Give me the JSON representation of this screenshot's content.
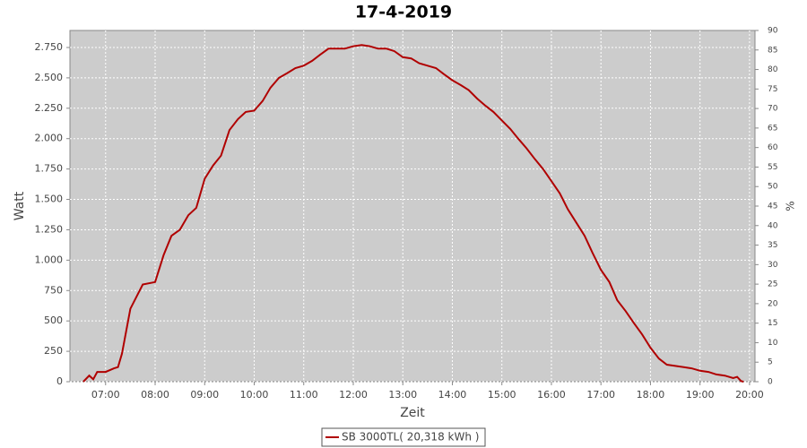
{
  "chart_data": {
    "type": "line",
    "title": "17-4-2019",
    "x_label": "Zeit",
    "y_label": "Watt",
    "y2_label": "%",
    "x": [
      6.55,
      6.67,
      6.75,
      6.83,
      7.0,
      7.17,
      7.25,
      7.33,
      7.5,
      7.75,
      8.0,
      8.17,
      8.33,
      8.5,
      8.67,
      8.83,
      9.0,
      9.17,
      9.33,
      9.5,
      9.67,
      9.83,
      10.0,
      10.17,
      10.33,
      10.5,
      10.67,
      10.83,
      11.0,
      11.17,
      11.33,
      11.5,
      11.67,
      11.83,
      12.0,
      12.17,
      12.33,
      12.5,
      12.67,
      12.83,
      13.0,
      13.17,
      13.33,
      13.5,
      13.67,
      13.83,
      14.0,
      14.17,
      14.33,
      14.5,
      14.67,
      14.83,
      15.0,
      15.17,
      15.33,
      15.5,
      15.67,
      15.83,
      16.0,
      16.17,
      16.33,
      16.5,
      16.67,
      16.83,
      17.0,
      17.17,
      17.33,
      17.5,
      17.67,
      17.83,
      18.0,
      18.17,
      18.33,
      18.5,
      18.67,
      18.83,
      19.0,
      19.17,
      19.33,
      19.5,
      19.67,
      19.75,
      19.83,
      19.88
    ],
    "series": [
      {
        "name": "SB 3000TL( 20,318 kWh )",
        "color": "#b00000",
        "values": [
          0,
          50,
          20,
          80,
          80,
          110,
          120,
          230,
          600,
          800,
          820,
          1040,
          1200,
          1250,
          1370,
          1430,
          1670,
          1780,
          1860,
          2070,
          2160,
          2220,
          2230,
          2310,
          2420,
          2500,
          2540,
          2580,
          2600,
          2640,
          2690,
          2740,
          2740,
          2740,
          2760,
          2770,
          2760,
          2740,
          2740,
          2720,
          2670,
          2660,
          2620,
          2600,
          2580,
          2530,
          2480,
          2440,
          2400,
          2330,
          2270,
          2220,
          2150,
          2080,
          2000,
          1920,
          1830,
          1750,
          1650,
          1550,
          1420,
          1310,
          1200,
          1060,
          920,
          820,
          670,
          580,
          480,
          390,
          280,
          190,
          140,
          130,
          120,
          110,
          90,
          80,
          60,
          50,
          30,
          40,
          5,
          0
        ]
      }
    ],
    "xlim": [
      6.28,
      20.11
    ],
    "xticks": [
      {
        "value": 7,
        "label": "07:00"
      },
      {
        "value": 8,
        "label": "08:00"
      },
      {
        "value": 9,
        "label": "09:00"
      },
      {
        "value": 10,
        "label": "10:00"
      },
      {
        "value": 11,
        "label": "11:00"
      },
      {
        "value": 12,
        "label": "12:00"
      },
      {
        "value": 13,
        "label": "13:00"
      },
      {
        "value": 14,
        "label": "14:00"
      },
      {
        "value": 15,
        "label": "15:00"
      },
      {
        "value": 16,
        "label": "16:00"
      },
      {
        "value": 17,
        "label": "17:00"
      },
      {
        "value": 18,
        "label": "18:00"
      },
      {
        "value": 19,
        "label": "19:00"
      },
      {
        "value": 20,
        "label": "20:00"
      }
    ],
    "ylim": [
      0,
      2890
    ],
    "yticks": [
      0,
      250,
      500,
      750,
      {
        "value": 1000,
        "label": "1.000"
      },
      {
        "value": 1250,
        "label": "1.250"
      },
      {
        "value": 1500,
        "label": "1.500"
      },
      {
        "value": 1750,
        "label": "1.750"
      },
      {
        "value": 2000,
        "label": "2.000"
      },
      {
        "value": 2250,
        "label": "2.250"
      },
      {
        "value": 2500,
        "label": "2.500"
      },
      {
        "value": 2750,
        "label": "2.750"
      }
    ],
    "y2lim": [
      0,
      90
    ],
    "y2ticks": [
      0,
      5,
      10,
      15,
      20,
      25,
      30,
      35,
      40,
      45,
      50,
      55,
      60,
      65,
      70,
      75,
      80,
      85,
      90
    ],
    "grid": true
  }
}
